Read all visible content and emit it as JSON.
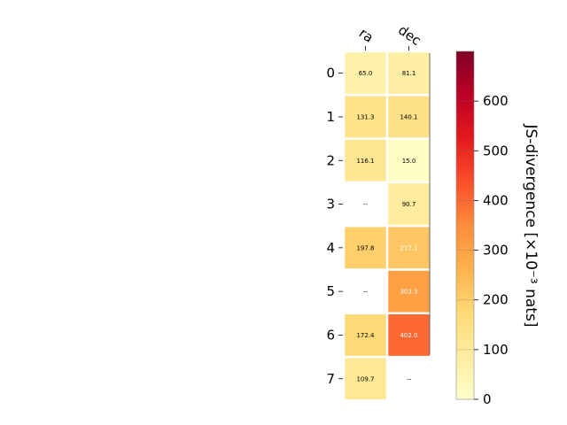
{
  "chart_data": {
    "type": "heatmap",
    "title": "",
    "columns": [
      "ra",
      "dec"
    ],
    "rows": [
      "0",
      "1",
      "2",
      "3",
      "4",
      "5",
      "6",
      "7"
    ],
    "values": [
      [
        65.0,
        81.1
      ],
      [
        131.3,
        140.1
      ],
      [
        116.1,
        15.0
      ],
      [
        null,
        90.7
      ],
      [
        197.8,
        217.1
      ],
      [
        null,
        303.3
      ],
      [
        172.4,
        402.0
      ],
      [
        109.7,
        null
      ]
    ],
    "cell_labels": [
      [
        "65.0",
        "81.1"
      ],
      [
        "131.3",
        "140.1"
      ],
      [
        "116.1",
        "15.0"
      ],
      [
        "--",
        "90.7"
      ],
      [
        "197.8",
        "217.1"
      ],
      [
        "--",
        "303.3"
      ],
      [
        "172.4",
        "402.0"
      ],
      [
        "109.7",
        "--"
      ]
    ],
    "colorbar": {
      "label": "JS-divergence [×10⁻³ nats]",
      "range": [
        0,
        700
      ],
      "ticks": [
        "0",
        "100",
        "200",
        "300",
        "400",
        "500",
        "600"
      ],
      "colormap": "YlOrRd"
    }
  }
}
